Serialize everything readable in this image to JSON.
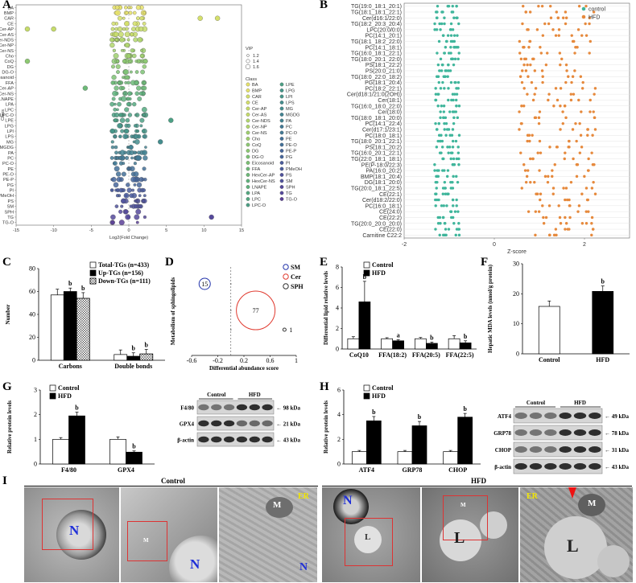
{
  "panel_labels": {
    "a": "A",
    "b": "B",
    "c": "C",
    "d": "D",
    "e": "E",
    "f": "F",
    "g": "G",
    "h": "H",
    "i": "I"
  },
  "colors": {
    "control_teal": "#3fb59b",
    "hfd_orange": "#e6893c",
    "black": "#000000"
  },
  "chart_data": [
    {
      "panel": "A",
      "type": "scatter",
      "title": "",
      "xlabel": "Log2(Fold Change)",
      "ylabel": "Class",
      "xlim": [
        -15,
        15
      ],
      "xticks": [
        "-15",
        "-10",
        "-5",
        "0",
        "5",
        "10",
        "15"
      ],
      "categories": [
        "BA",
        "BMP",
        "CAR",
        "CE",
        "Cer-AP",
        "Cer-AS",
        "Cer-NDS",
        "Cer-NP",
        "Cer-NS",
        "Cho",
        "CoQ",
        "DG",
        "DG-O",
        "Eicosanoid",
        "FFA",
        "HexCer-AP",
        "HexCer-NS",
        "LNAPE",
        "LPA",
        "LPC",
        "LPC-O",
        "LPE",
        "LPG",
        "LPI",
        "LPS",
        "MG",
        "MGDG",
        "PA",
        "PC",
        "PC-O",
        "PE",
        "PE-O",
        "PE-P",
        "PG",
        "PI",
        "PMeOH",
        "PS",
        "SM",
        "SPH",
        "TG",
        "TG-O"
      ],
      "vip_title": "VIP",
      "vip_legend": [
        "1.2",
        "1.4",
        "1.6"
      ],
      "class_title": "Class",
      "legend_col1": [
        "BA",
        "BMP",
        "CAR",
        "CE",
        "Cer-AP",
        "Cer-AS",
        "Cer-NDS",
        "Cer-NP",
        "Cer-NS",
        "Cho",
        "CoQ",
        "DG",
        "DG-O",
        "Eicosanoid",
        "FFA",
        "HexCer-AP",
        "HexCer-NS",
        "LNAPE",
        "LPA",
        "LPC",
        "LPC-O"
      ],
      "legend_col2": [
        "LPE",
        "LPG",
        "LPI",
        "LPS",
        "MG",
        "MGDG",
        "PA",
        "PC",
        "PC-O",
        "PE",
        "PE-O",
        "PE-P",
        "PG",
        "PI",
        "PMeOH",
        "PS",
        "SM",
        "SPH",
        "TG",
        "TG-O"
      ],
      "outliers": [
        {
          "class": "CAR",
          "x": 9.5
        },
        {
          "class": "CAR",
          "x": 11.8
        },
        {
          "class": "Cer-AP",
          "x": -13.5
        },
        {
          "class": "Cer-AP",
          "x": -10
        },
        {
          "class": "CoQ",
          "x": -13.5
        },
        {
          "class": "HexCer-AP",
          "x": -5.8
        },
        {
          "class": "MG",
          "x": 4.2
        },
        {
          "class": "LPE",
          "x": 5.6
        },
        {
          "class": "TG",
          "x": 11
        }
      ]
    },
    {
      "panel": "B",
      "type": "scatter",
      "xlabel": "Z-score",
      "xlim": [
        -2,
        3
      ],
      "xticks": [
        "-2",
        "0",
        "2"
      ],
      "legend": [
        "control",
        "HFD"
      ],
      "lipids": [
        "TG(19:0_18:1_20:1)",
        "TG(18:1_18:1_22:1)",
        "Cer(d16:1/22:0)",
        "TG(18:2_20:3_20:4)",
        "LPC(20:0/0:0)",
        "PC(14:1_20:1)",
        "TG(18:1_18:2_22:0)",
        "PC(14:1_18:1)",
        "TG(16:0_18:1_22:1)",
        "TG(18:0_20:1_22:0)",
        "PS(18:1_22:2)",
        "PS(20:0_21:0)",
        "TG(18:0_22:0_18:2)",
        "PG(18:1_20:4)",
        "PC(18:2_22:1)",
        "Cer(d18:1/21:0(2OH))",
        "Cer(18:1)",
        "TG(16:0_18:0_22:0)",
        "Cer(18:0)",
        "TG(18:0_18:1_20:0)",
        "PC(14:1_22:4)",
        "Cer(d17:1/23:1)",
        "PC(18:0_18:1)",
        "TG(18:0_20:1_22:1)",
        "PS(18:1_20:2)",
        "TG(16:0_20:1_22:1)",
        "TG(22:0_18:1_18:1)",
        "PE(P-18:0/22:3)",
        "PA(16:0_20:2)",
        "BMP(18:1_20:4)",
        "DG(18:1_20:0)",
        "TG(20:0_18:1_22:5)",
        "CE(22:1)",
        "Cer(d18:2/22:0)",
        "PC(16:0_18:1)",
        "CE(24:0)",
        "CE(22:2)",
        "TG(20:0_20:0_20:0)",
        "CE(22:0)",
        "Carnitine C22:2"
      ]
    },
    {
      "panel": "C",
      "type": "bar",
      "ylabel": "Number",
      "ylim": [
        0,
        80
      ],
      "yticks": [
        "0",
        "20",
        "40",
        "60",
        "80"
      ],
      "categories": [
        "Carbons",
        "Double bonds"
      ],
      "series": [
        {
          "name": "Total-TGs (n=433)",
          "values": [
            57,
            5
          ]
        },
        {
          "name": "Up-TGs (n=156)",
          "values": [
            60,
            3.5
          ]
        },
        {
          "name": "Down-TGs (n=111)",
          "values": [
            54,
            5.5
          ]
        }
      ],
      "errors": [
        [
          5,
          4
        ],
        [
          3,
          3
        ],
        [
          5,
          4
        ]
      ],
      "sig": [
        [
          null,
          null
        ],
        [
          "b",
          "b"
        ],
        [
          "b",
          "b"
        ]
      ]
    },
    {
      "panel": "D",
      "type": "scatter",
      "ylabel": "Metabolism of sphingolipids",
      "xlabel": "Differential abundance score",
      "xlim": [
        -0.6,
        1
      ],
      "xticks": [
        "-0.6",
        "-0.2",
        "0.2",
        "0.6",
        "1"
      ],
      "points": [
        {
          "name": "SM",
          "x": -0.4,
          "count": "15",
          "color": "#2233aa"
        },
        {
          "name": "Cer",
          "x": 0.38,
          "count": "77",
          "color": "#e03a2f"
        },
        {
          "name": "SPH",
          "x": 0.82,
          "count": "1",
          "color": "#333333"
        }
      ],
      "legend": [
        "SM",
        "Cer",
        "SPH"
      ]
    },
    {
      "panel": "E",
      "type": "bar",
      "ylabel": "Differential lipid relative levels",
      "ylim": [
        0,
        8
      ],
      "yticks": [
        "0",
        "2",
        "4",
        "6",
        "8"
      ],
      "categories": [
        "CoQ10",
        "FFA(18:2)",
        "FFA(20:5)",
        "FFA(22:5)"
      ],
      "series": [
        {
          "name": "Control",
          "values": [
            1.0,
            1.0,
            1.0,
            1.0
          ]
        },
        {
          "name": "HFD",
          "values": [
            4.6,
            0.8,
            0.55,
            0.6
          ]
        }
      ],
      "errors": [
        [
          0.2,
          0.1,
          0.12,
          0.3
        ],
        [
          2.0,
          0.1,
          0.12,
          0.2
        ]
      ],
      "sig": [
        "b",
        "a",
        "b",
        "b"
      ]
    },
    {
      "panel": "F",
      "type": "bar",
      "ylabel": "Hepatic MDA levels (nmol/g protein)",
      "ylim": [
        0,
        30
      ],
      "yticks": [
        "0",
        "10",
        "20",
        "30"
      ],
      "categories": [
        "Control",
        "HFD"
      ],
      "values": [
        15.8,
        20.8
      ],
      "errors": [
        1.8,
        1.8
      ],
      "sig": [
        null,
        "b"
      ]
    },
    {
      "panel": "G",
      "type": "bar",
      "ylabel": "Relative protein levels",
      "ylim": [
        0,
        3
      ],
      "yticks": [
        "0",
        "1",
        "2",
        "3"
      ],
      "categories": [
        "F4/80",
        "GPX4"
      ],
      "series": [
        {
          "name": "Control",
          "values": [
            1.0,
            1.0
          ]
        },
        {
          "name": "HFD",
          "values": [
            1.95,
            0.48
          ]
        }
      ],
      "errors": [
        [
          0.07,
          0.1
        ],
        [
          0.15,
          0.05
        ]
      ],
      "sig": [
        "b",
        "b"
      ]
    },
    {
      "panel": "H",
      "type": "bar",
      "ylabel": "Relative protein levels",
      "ylim": [
        0,
        6
      ],
      "yticks": [
        "0",
        "2",
        "4",
        "6"
      ],
      "categories": [
        "ATF4",
        "GRP78",
        "CHOP"
      ],
      "series": [
        {
          "name": "Control",
          "values": [
            1.0,
            1.0,
            1.0
          ]
        },
        {
          "name": "HFD",
          "values": [
            3.5,
            3.1,
            3.8
          ]
        }
      ],
      "errors": [
        [
          0.1,
          0.1,
          0.1
        ],
        [
          0.35,
          0.35,
          0.3
        ]
      ],
      "sig": [
        "b",
        "b",
        "b"
      ]
    }
  ],
  "blot_g": {
    "groups": [
      "Control",
      "HFD"
    ],
    "bands": [
      {
        "name": "F4/80",
        "kda": "98 kDa"
      },
      {
        "name": "GPX4",
        "kda": "21 kDa"
      },
      {
        "name": "β-actin",
        "kda": "43 kDa"
      }
    ]
  },
  "blot_h": {
    "groups": [
      "Control",
      "HFD"
    ],
    "bands": [
      {
        "name": "ATF4",
        "kda": "49 kDa"
      },
      {
        "name": "GRP78",
        "kda": "78 kDa"
      },
      {
        "name": "CHOP",
        "kda": "31 kDa"
      },
      {
        "name": "β-actin",
        "kda": "43 kDa"
      }
    ]
  },
  "em": {
    "control_title": "Control",
    "hfd_title": "HFD",
    "labels": {
      "n": "N",
      "m": "M",
      "er": "ER",
      "l": "L"
    }
  }
}
